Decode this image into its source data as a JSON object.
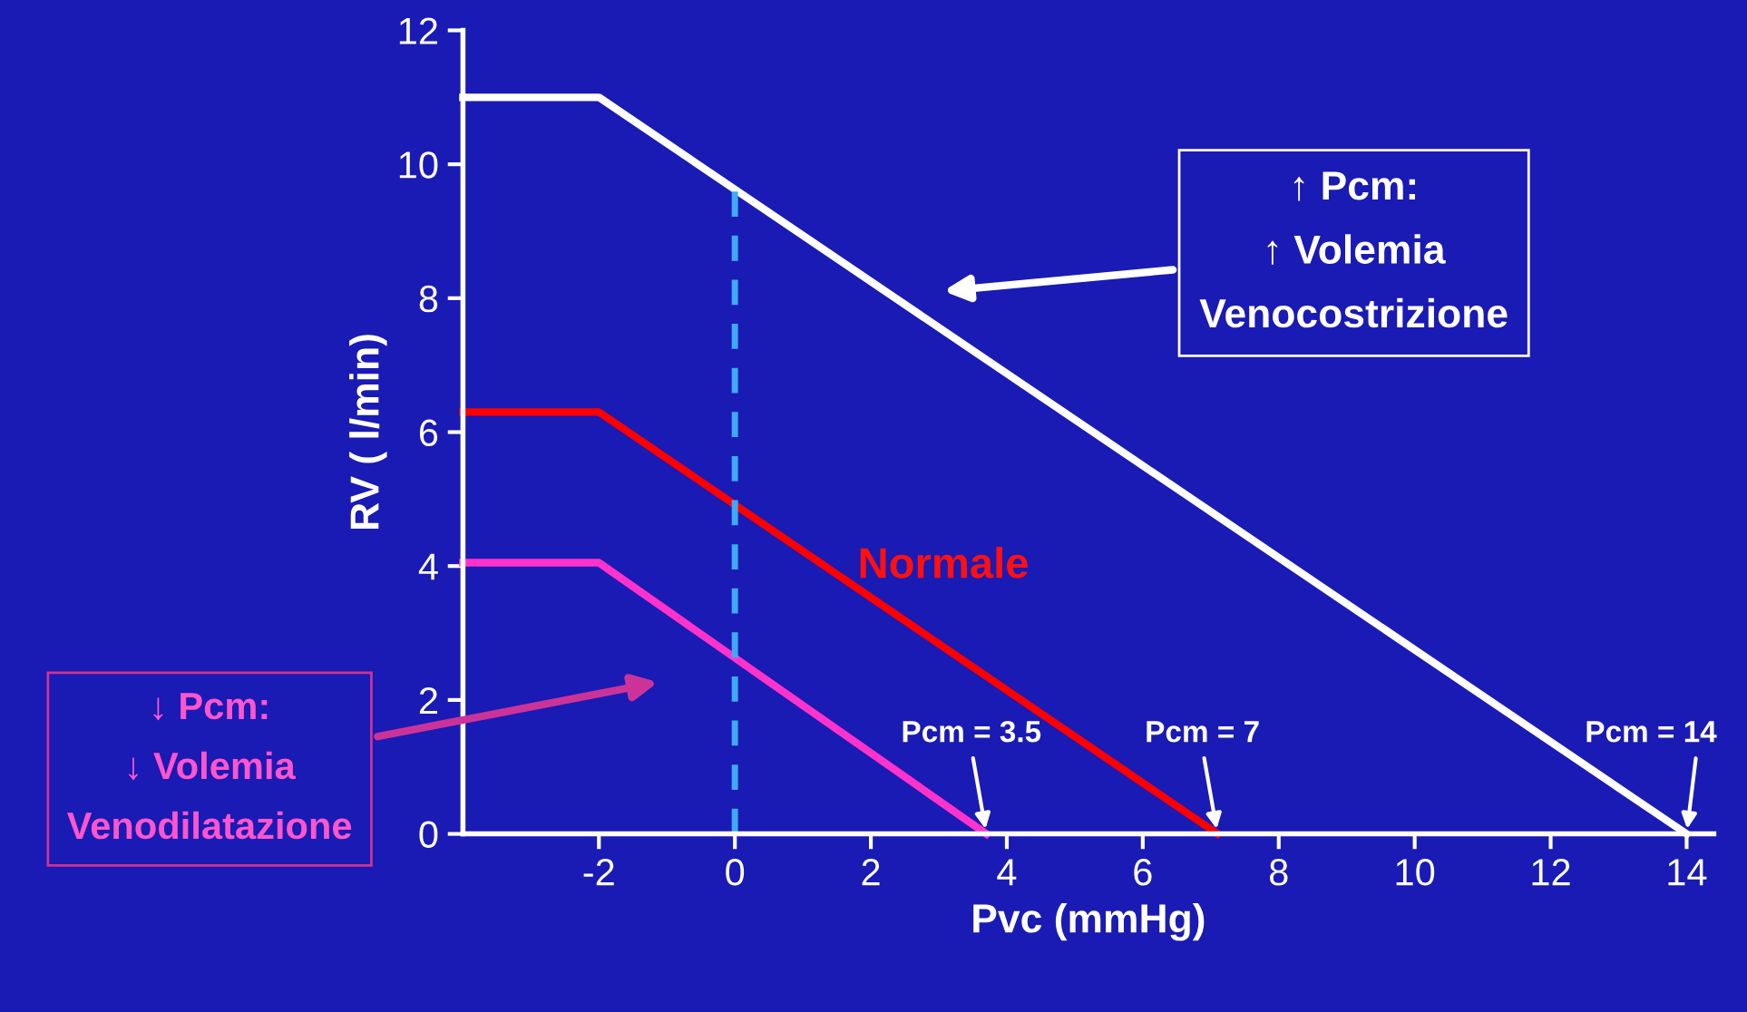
{
  "chart_data": {
    "type": "line",
    "xlabel": "Pvc (mmHg)",
    "ylabel": "RV ( l/min)",
    "xlim": [
      -4,
      14.4
    ],
    "xticks": [
      -2,
      0,
      2,
      4,
      6,
      8,
      10,
      12,
      14
    ],
    "ylim": [
      0,
      12
    ],
    "yticks": [
      0,
      2,
      4,
      6,
      8,
      10,
      12
    ],
    "grid": false,
    "legend": false,
    "marker": "none",
    "series": [
      {
        "x": [
          -4,
          -2,
          14
        ],
        "values": [
          11,
          11,
          0
        ],
        "color": "#ffffff"
      },
      {
        "x": [
          -4,
          -2,
          7.1
        ],
        "values": [
          6.3,
          6.3,
          0
        ],
        "color": "#ff0000"
      },
      {
        "x": [
          -4,
          -2,
          3.7
        ],
        "values": [
          4.05,
          4.05,
          0
        ],
        "color": "#ff33cc"
      },
      {
        "x": [
          0,
          0
        ],
        "values": [
          0,
          9.7
        ],
        "color": "#3fa9f5",
        "line_style": "dashed"
      }
    ],
    "annotations": [
      "↑ Pcm:\n↑ Volemia\nVenocostrizione",
      "Normale",
      "↓ Pcm:\n↓ Volemia\nVenodilatazione",
      {
        "text": "Pcm = 3.5",
        "x": 3.7,
        "y": 0
      },
      {
        "text": "Pcm = 7",
        "x": 7.1,
        "y": 0
      },
      {
        "text": "Pcm = 14",
        "x": 14,
        "y": 0
      }
    ]
  }
}
